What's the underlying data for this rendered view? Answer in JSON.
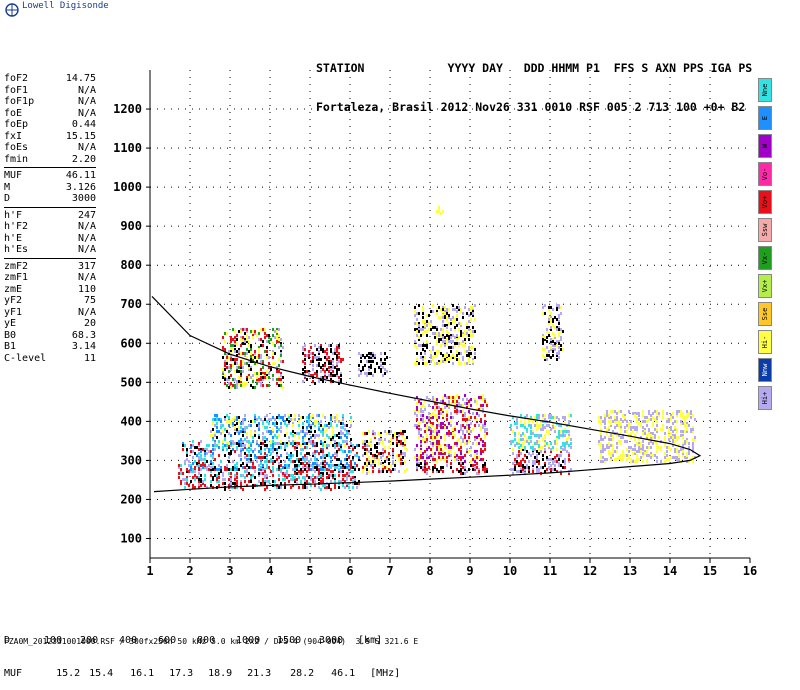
{
  "app": {
    "logo_text": "Lowell Digisonde"
  },
  "header": {
    "line1": "STATION            YYYY DAY   DDD HHMM P1  FFS S AXN PPS IGA PS",
    "line2": "Fortaleza, Brasil 2012 Nov26 331 0010 RSF 005 2 713 100 +0+ B2"
  },
  "params": [
    [
      {
        "label": "foF2",
        "value": "14.75"
      },
      {
        "label": "foF1",
        "value": "N/A"
      },
      {
        "label": "foF1p",
        "value": "N/A"
      },
      {
        "label": "foE",
        "value": "N/A"
      },
      {
        "label": "foEp",
        "value": "0.44"
      },
      {
        "label": "fxI",
        "value": "15.15"
      },
      {
        "label": "foEs",
        "value": "N/A"
      },
      {
        "label": "fmin",
        "value": "2.20"
      }
    ],
    [
      {
        "label": "MUF",
        "value": "46.11"
      },
      {
        "label": "M",
        "value": "3.126"
      },
      {
        "label": "D",
        "value": "3000"
      }
    ],
    [
      {
        "label": "h'F",
        "value": "247"
      },
      {
        "label": "h'F2",
        "value": "N/A"
      },
      {
        "label": "h'E",
        "value": "N/A"
      },
      {
        "label": "h'Es",
        "value": "N/A"
      }
    ],
    [
      {
        "label": "zmF2",
        "value": "317"
      },
      {
        "label": "zmF1",
        "value": "N/A"
      },
      {
        "label": "zmE",
        "value": "110"
      },
      {
        "label": "yF2",
        "value": "75"
      },
      {
        "label": "yF1",
        "value": "N/A"
      },
      {
        "label": "yE",
        "value": "20"
      },
      {
        "label": "B0",
        "value": "68.3"
      },
      {
        "label": "B1",
        "value": "3.14"
      },
      {
        "label": "C-level",
        "value": "11"
      }
    ]
  ],
  "legend": [
    {
      "label": "Nne",
      "color": "#33e3e3"
    },
    {
      "label": "E",
      "color": "#1e90ff"
    },
    {
      "label": "W",
      "color": "#a000c8"
    },
    {
      "label": "Vo-",
      "color": "#ff2aa8"
    },
    {
      "label": "Vo+",
      "color": "#e8101a"
    },
    {
      "label": "Ssw",
      "color": "#f4aaaa"
    },
    {
      "label": "Vx-",
      "color": "#1ea01e"
    },
    {
      "label": "Vx+",
      "color": "#b4ee4a"
    },
    {
      "label": "Sse",
      "color": "#ffc828"
    },
    {
      "label": "Hi-",
      "color": "#ffff46"
    },
    {
      "label": "Nnw",
      "color": "#0a3caa"
    },
    {
      "label": "Hi+",
      "color": "#b4aaf0"
    }
  ],
  "muf_table": {
    "d_label": "D",
    "d_values": [
      "100",
      "200",
      "400",
      "600",
      "800",
      "1000",
      "1500",
      "3000"
    ],
    "d_unit": "[km]",
    "muf_label": "MUF",
    "muf_values": [
      "15.2",
      "15.4",
      "16.1",
      "17.3",
      "18.9",
      "21.3",
      "28.2",
      "46.1"
    ],
    "muf_unit": "[MHz]"
  },
  "footer": "FZA0M_2012331001000.RSF / 300fx256h 50 kHz 5.0 km 2x2 / DPS-4 (904-904)  3.9 S 321.6 E",
  "chart_data": {
    "type": "scatter",
    "title": "",
    "xlabel": "",
    "ylabel": "",
    "xlim": [
      1,
      16
    ],
    "ylim": [
      50,
      1300
    ],
    "xticks": [
      1,
      2,
      3,
      4,
      5,
      6,
      7,
      8,
      9,
      10,
      11,
      12,
      13,
      14,
      15,
      16
    ],
    "yticks": [
      100,
      200,
      300,
      400,
      500,
      600,
      700,
      800,
      900,
      1000,
      1100,
      1200
    ],
    "grid": true,
    "profile_curve": {
      "upper": [
        [
          1.05,
          720
        ],
        [
          2,
          620
        ],
        [
          3,
          572
        ],
        [
          4,
          540
        ],
        [
          5,
          515
        ],
        [
          6,
          493
        ],
        [
          7,
          472
        ],
        [
          8,
          452
        ],
        [
          9,
          432
        ],
        [
          10,
          414
        ],
        [
          11,
          398
        ],
        [
          12,
          380
        ],
        [
          13,
          362
        ],
        [
          14,
          343
        ],
        [
          14.5,
          328
        ],
        [
          14.75,
          312
        ]
      ],
      "lower": [
        [
          14.75,
          312
        ],
        [
          14.5,
          300
        ],
        [
          14,
          292
        ],
        [
          13,
          284
        ],
        [
          12,
          276
        ],
        [
          11,
          268
        ],
        [
          10,
          262
        ],
        [
          9,
          257
        ],
        [
          8,
          252
        ],
        [
          7,
          247
        ],
        [
          6,
          243
        ],
        [
          5,
          239
        ],
        [
          4,
          236
        ],
        [
          3,
          232
        ],
        [
          2,
          226
        ],
        [
          1.1,
          220
        ]
      ]
    },
    "echo_regions": [
      {
        "x": [
          1.7,
          6.2
        ],
        "y": [
          230,
          290
        ],
        "colors": [
          "#e8101a",
          "#e8101a",
          "#33e3e3",
          "#000000",
          "#b4aaf0"
        ]
      },
      {
        "x": [
          1.8,
          6.2
        ],
        "y": [
          280,
          350
        ],
        "colors": [
          "#1e90ff",
          "#33e3e3",
          "#000000",
          "#e8101a",
          "#b4aaf0"
        ]
      },
      {
        "x": [
          2.5,
          6.0
        ],
        "y": [
          340,
          420
        ],
        "colors": [
          "#33e3e3",
          "#ffff46",
          "#1e90ff",
          "#000000",
          "#b4aaf0"
        ]
      },
      {
        "x": [
          6.3,
          7.4
        ],
        "y": [
          270,
          380
        ],
        "colors": [
          "#e8101a",
          "#b4aaf0",
          "#ffff46",
          "#000000"
        ]
      },
      {
        "x": [
          7.6,
          9.4
        ],
        "y": [
          270,
          300
        ],
        "colors": [
          "#e8101a",
          "#b4aaf0",
          "#000000"
        ]
      },
      {
        "x": [
          7.6,
          9.4
        ],
        "y": [
          300,
          470
        ],
        "colors": [
          "#ffff46",
          "#b4aaf0",
          "#a000c8",
          "#e8101a"
        ]
      },
      {
        "x": [
          10.0,
          11.5
        ],
        "y": [
          270,
          330
        ],
        "colors": [
          "#e8101a",
          "#b4aaf0",
          "#000000"
        ]
      },
      {
        "x": [
          10.0,
          11.5
        ],
        "y": [
          330,
          420
        ],
        "colors": [
          "#ffff46",
          "#b4aaf0",
          "#33e3e3"
        ]
      },
      {
        "x": [
          12.2,
          14.6
        ],
        "y": [
          300,
          350
        ],
        "colors": [
          "#b4aaf0",
          "#ffff46"
        ]
      },
      {
        "x": [
          12.2,
          14.6
        ],
        "y": [
          350,
          430
        ],
        "colors": [
          "#ffff46",
          "#b4aaf0"
        ]
      },
      {
        "x": [
          2.8,
          4.3
        ],
        "y": [
          490,
          640
        ],
        "colors": [
          "#000000",
          "#e8101a",
          "#1ea01e",
          "#b4aaf0",
          "#ffff46"
        ]
      },
      {
        "x": [
          4.8,
          5.8
        ],
        "y": [
          500,
          600
        ],
        "colors": [
          "#000000",
          "#e8101a",
          "#b4aaf0"
        ]
      },
      {
        "x": [
          7.6,
          9.1
        ],
        "y": [
          550,
          700
        ],
        "colors": [
          "#ffff46",
          "#b4aaf0",
          "#000000"
        ]
      },
      {
        "x": [
          10.8,
          11.3
        ],
        "y": [
          560,
          700
        ],
        "colors": [
          "#000000",
          "#ffff46",
          "#b4aaf0"
        ]
      },
      {
        "x": [
          6.2,
          6.9
        ],
        "y": [
          520,
          580
        ],
        "colors": [
          "#b4aaf0",
          "#000000"
        ]
      },
      {
        "x": [
          8.1,
          8.3
        ],
        "y": [
          935,
          950
        ],
        "colors": [
          "#ffff46"
        ]
      }
    ]
  }
}
